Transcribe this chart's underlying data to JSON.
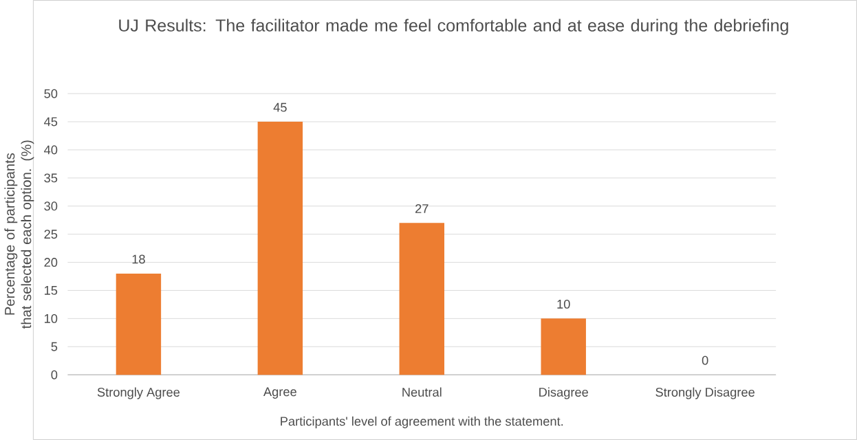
{
  "chart_data": {
    "type": "bar",
    "title": "UJ Results: The facilitator made me feel comfortable and at ease during the debriefing",
    "xlabel": "Participants' level of agreement with the statement.",
    "ylabel": "Percentage of participants that selected each option. (%)",
    "categories": [
      "Strongly Agree",
      "Agree",
      "Neutral",
      "Disagree",
      "Strongly Disagree"
    ],
    "values": [
      18,
      45,
      27,
      10,
      0
    ],
    "color": "#ed7d31",
    "ylim": [
      0,
      50
    ],
    "yticks": [
      0,
      5,
      10,
      15,
      20,
      25,
      30,
      35,
      40,
      45,
      50
    ],
    "grid": "y",
    "data_labels": true
  }
}
